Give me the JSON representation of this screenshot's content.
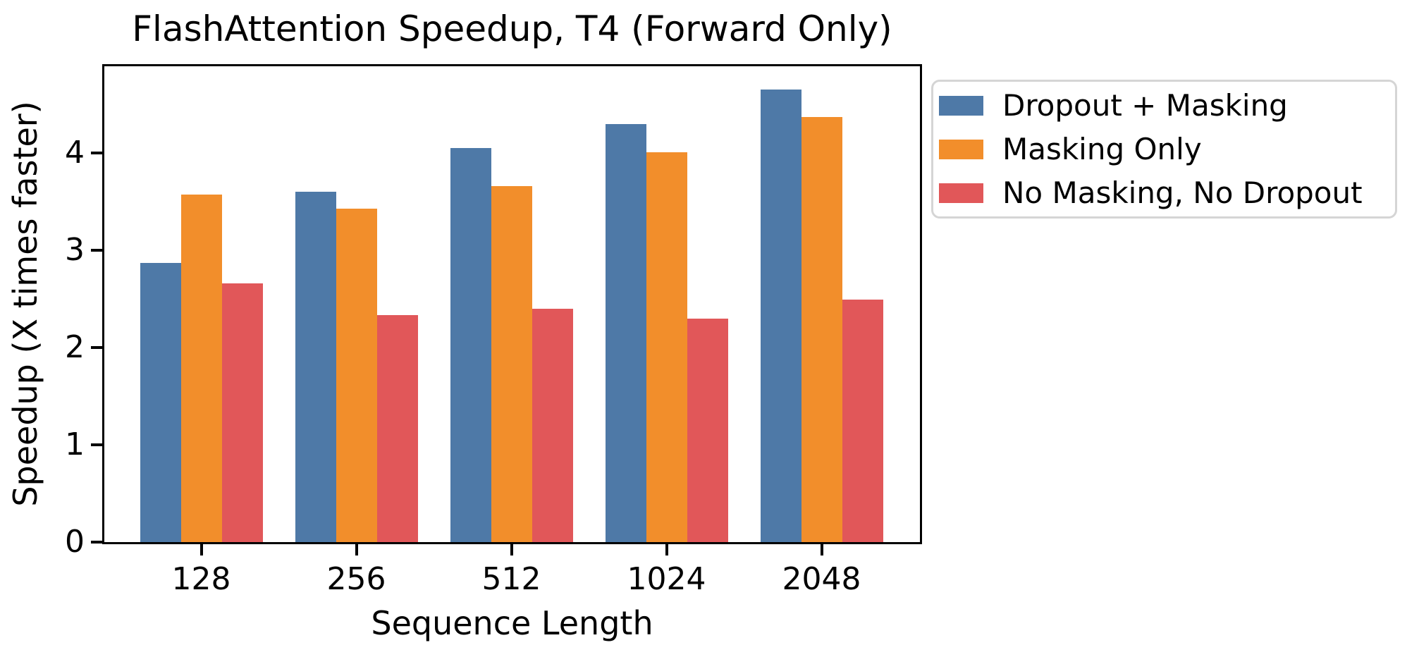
{
  "chart_data": {
    "type": "bar",
    "title": "FlashAttention Speedup, T4 (Forward Only)",
    "xlabel": "Sequence Length",
    "ylabel": "Speedup (X times faster)",
    "categories": [
      "128",
      "256",
      "512",
      "1024",
      "2048"
    ],
    "series": [
      {
        "name": "Dropout + Masking",
        "color": "#4E79A7",
        "values": [
          2.87,
          3.6,
          4.05,
          4.3,
          4.65
        ]
      },
      {
        "name": "Masking Only",
        "color": "#F28E2B",
        "values": [
          3.57,
          3.43,
          3.66,
          4.01,
          4.37
        ]
      },
      {
        "name": "No Masking, No Dropout",
        "color": "#E15759",
        "values": [
          2.66,
          2.33,
          2.4,
          2.3,
          2.49
        ]
      }
    ],
    "yticks": [
      0,
      1,
      2,
      3,
      4
    ],
    "ylim": [
      0,
      4.89
    ],
    "grid": false,
    "legend_position": "outside-right",
    "colors": {
      "axis": "#000000",
      "background": "#ffffff",
      "legend_border": "#d5d5d5"
    }
  }
}
